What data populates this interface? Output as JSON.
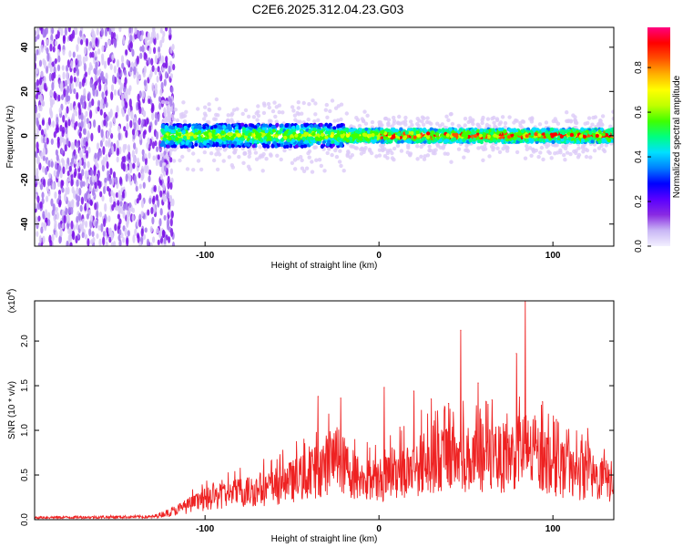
{
  "title": "C2E6.2025.312.04.23.G03",
  "chart_data": [
    {
      "type": "heatmap",
      "xlabel": "Height of straight line (km)",
      "ylabel": "Frequency (Hz)",
      "xlim": [
        -198,
        135
      ],
      "ylim": [
        -50,
        49
      ],
      "xticks": [
        -100,
        0,
        100
      ],
      "yticks": [
        -40,
        -20,
        0,
        20,
        40
      ],
      "colorbar": {
        "label": "Normalized spectral amplitude",
        "range": [
          0.0,
          0.98
        ],
        "ticks": [
          "0.0",
          "0.2",
          "0.4",
          "0.6",
          "0.8"
        ],
        "colors": [
          "#f3f0ff",
          "#c9b7f5",
          "#8a2be2",
          "#5a00ff",
          "#0000ff",
          "#0080ff",
          "#00e0ff",
          "#00ff80",
          "#40ff00",
          "#c0ff00",
          "#ffff00",
          "#ffb000",
          "#ff5000",
          "#ff0000",
          "#ff0080"
        ]
      },
      "regions": [
        {
          "name": "noise",
          "x": [
            -198,
            -118
          ],
          "freq": [
            -50,
            49
          ]
        },
        {
          "name": "band",
          "x": [
            -125,
            135
          ],
          "center_hz": 0
        }
      ]
    },
    {
      "type": "line",
      "xlabel": "Height of straight line (km)",
      "ylabel": "SNR (10 * v/v)",
      "yunit": "(x10",
      "yunit_exp": "4",
      "yunit_close": ")",
      "xlim": [
        -198,
        135
      ],
      "ylim": [
        0,
        2.45
      ],
      "xticks": [
        -100,
        0,
        100
      ],
      "yticks": [
        "0.0",
        "0.5",
        "1.0",
        "1.5",
        "2.0"
      ],
      "color": "#ee2222",
      "envelope": [
        [
          -198,
          0.03
        ],
        [
          -130,
          0.04
        ],
        [
          -118,
          0.12
        ],
        [
          -100,
          0.28
        ],
        [
          -80,
          0.38
        ],
        [
          -60,
          0.45
        ],
        [
          -40,
          0.62
        ],
        [
          -25,
          0.85
        ],
        [
          -10,
          0.55
        ],
        [
          0,
          0.55
        ],
        [
          10,
          0.65
        ],
        [
          20,
          0.72
        ],
        [
          30,
          0.85
        ],
        [
          40,
          0.88
        ],
        [
          50,
          0.85
        ],
        [
          60,
          0.85
        ],
        [
          70,
          0.85
        ],
        [
          80,
          0.95
        ],
        [
          90,
          0.9
        ],
        [
          100,
          0.75
        ],
        [
          110,
          0.65
        ],
        [
          120,
          0.6
        ],
        [
          135,
          0.52
        ]
      ],
      "peaks": [
        {
          "x": -35,
          "y": 1.38
        },
        {
          "x": -22,
          "y": 1.36
        },
        {
          "x": 3,
          "y": 1.48
        },
        {
          "x": 20,
          "y": 1.44
        },
        {
          "x": 30,
          "y": 1.35
        },
        {
          "x": 40,
          "y": 1.3
        },
        {
          "x": 47,
          "y": 2.12
        },
        {
          "x": 57,
          "y": 1.53
        },
        {
          "x": 65,
          "y": 1.34
        },
        {
          "x": 79,
          "y": 1.86
        },
        {
          "x": 84,
          "y": 2.45
        },
        {
          "x": 94,
          "y": 1.32
        },
        {
          "x": 102,
          "y": 1.12
        },
        {
          "x": 120,
          "y": 1.02
        }
      ]
    }
  ]
}
